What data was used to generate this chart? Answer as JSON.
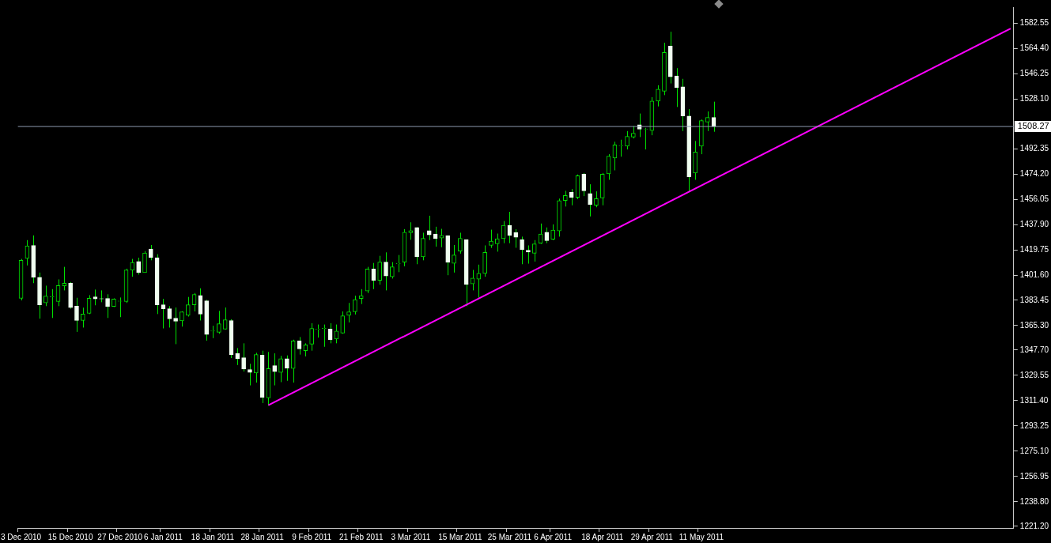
{
  "chart_data": {
    "type": "candlestick",
    "color": "#00e000",
    "colors": [
      "#00e000",
      "#00e000",
      "#f0fff0",
      "#f0fff0",
      "#00e000",
      "#00e000",
      "#00e000",
      "#00e000",
      "#f0fff0",
      "#f0fff0",
      "#00e000",
      "#00e000",
      "#f0fff0",
      "#f0fff0",
      "#f0fff0",
      "#00e000",
      "#00e000",
      "#00e000",
      "#00e000",
      "#f0fff0",
      "#00e000",
      "#f0fff0",
      "#f0fff0",
      "#f0fff0",
      "#f0fff0",
      "#f0fff0",
      "#00e000",
      "#00e000",
      "#00e000",
      "#f0fff0",
      "#f0fff0",
      "#00e000",
      "#00e000",
      "#00e000",
      "#f0fff0",
      "#f0fff0",
      "#f0fff0",
      "#f0fff0",
      "#00e000",
      "#f0fff0",
      "#00e000",
      "#f0fff0",
      "#00e000",
      "#f0fff0",
      "#00e000",
      "#f0fff0",
      "#00e000",
      "#00e000",
      "#00e000",
      "#00e000",
      "#f0fff0",
      "#00e000",
      "#00e000",
      "#00e000",
      "#00e000",
      "#00e000",
      "#00e000",
      "#f0fff0",
      "#00e000",
      "#f0fff0",
      "#00e000",
      "#00e000",
      "#00e000",
      "#00e000",
      "#f0fff0",
      "#00e000",
      "#f0fff0",
      "#f0fff0",
      "#00e000",
      "#f0fff0",
      "#00e000",
      "#00e000",
      "#f0fff0",
      "#00e000",
      "#00e000",
      "#00e000",
      "#00e000",
      "#00e000",
      "#00e000",
      "#f0fff0",
      "#f0fff0",
      "#f0fff0",
      "#f0fff0",
      "#00e000",
      "#00e000",
      "#f0fff0",
      "#00e000",
      "#00e000",
      "#00e000",
      "#f0fff0",
      "#00e000",
      "#f0fff0",
      "#f0fff0",
      "#00e000",
      "#00e000",
      "#00e000",
      "#00e000",
      "#00e000",
      "#00e000",
      "#00e000",
      "#f0fff0",
      "#00e000",
      "#00e000",
      "#00e000",
      "#00e000",
      "#f0fff0",
      "#f0fff0",
      "#f0fff0",
      "#f0fff0",
      "#00e000",
      "#00e000",
      "#00e000",
      "#f0fff0",
      null,
      null,
      null,
      null,
      null,
      null,
      null,
      null,
      null,
      null,
      null,
      null,
      null,
      null,
      null,
      null,
      null,
      null,
      null,
      null,
      null,
      null,
      null,
      null,
      null,
      null,
      null,
      null,
      null,
      null,
      null,
      null,
      null,
      null,
      null,
      null,
      null,
      null,
      null,
      null,
      null,
      null,
      null,
      null,
      null,
      null,
      null,
      null
    ],
    "categories": [
      "3 Dec 2010",
      null,
      null,
      null,
      null,
      null,
      null,
      null,
      "15 Dec 2010",
      null,
      null,
      null,
      null,
      null,
      null,
      null,
      "27 Dec 2010",
      null,
      null,
      null,
      null,
      null,
      null,
      "6 Jan 2011",
      null,
      null,
      null,
      null,
      null,
      null,
      null,
      "18 Jan 2011",
      null,
      null,
      null,
      null,
      null,
      null,
      null,
      "28 Jan 2011",
      null,
      null,
      null,
      null,
      null,
      null,
      null,
      "9 Feb 2011",
      null,
      null,
      null,
      null,
      null,
      null,
      null,
      "21 Feb 2011",
      null,
      null,
      null,
      null,
      null,
      null,
      null,
      "3 Mar 2011",
      null,
      null,
      null,
      null,
      null,
      null,
      null,
      "15 Mar 2011",
      null,
      null,
      null,
      null,
      null,
      null,
      null,
      "25 Mar 2011",
      null,
      null,
      null,
      null,
      null,
      null,
      "6 Apr 2011",
      null,
      null,
      null,
      null,
      null,
      null,
      null,
      "18 Apr 2011",
      null,
      null,
      null,
      null,
      null,
      null,
      null,
      "29 Apr 2011",
      null,
      null,
      null,
      null,
      null,
      null,
      null,
      "11 May 2011",
      null,
      null,
      null,
      null,
      null,
      null,
      null,
      null,
      null,
      null,
      null,
      null,
      null,
      null,
      null,
      null,
      null,
      null,
      null,
      null,
      null,
      null,
      null,
      null,
      null,
      null,
      null,
      null,
      null,
      null,
      null,
      null,
      null,
      null,
      null,
      null,
      null,
      null,
      null,
      null,
      null,
      null,
      null,
      null,
      null,
      null,
      null,
      null,
      null,
      null
    ],
    "ohlc": [
      [
        1384.9,
        1413.2,
        1383.4,
        1412.2
      ],
      [
        1413.6,
        1426.7,
        1408.5,
        1422.6
      ],
      [
        1422.9,
        1430.1,
        1395.8,
        1400.0
      ],
      [
        1400.0,
        1403.4,
        1370.3,
        1380.3
      ],
      [
        1381.7,
        1394.0,
        1379.3,
        1386.5
      ],
      [
        1385.9,
        1391.5,
        1370.8,
        1386.1
      ],
      [
        1382.7,
        1398.5,
        1379.3,
        1394.0
      ],
      [
        1393.8,
        1407.5,
        1390.6,
        1395.7
      ],
      [
        1395.7,
        1396.6,
        1377.4,
        1378.3
      ],
      [
        1379.3,
        1385.3,
        1360.8,
        1369.0
      ],
      [
        1369.0,
        1378.2,
        1363.9,
        1373.6
      ],
      [
        1374.2,
        1387.2,
        1373.6,
        1384.9
      ],
      [
        1385.9,
        1391.2,
        1379.9,
        1384.5
      ],
      [
        1384.7,
        1390.6,
        1382.1,
        1384.5
      ],
      [
        1384.8,
        1387.8,
        1370.8,
        1379.1
      ],
      [
        1379.1,
        1384.9,
        1378.7,
        1384.4
      ],
      [
        1382.8,
        1385.5,
        1371.4,
        1383.0
      ],
      [
        1382.7,
        1406.2,
        1381.6,
        1405.3
      ],
      [
        1405.1,
        1413.2,
        1400.4,
        1410.7
      ],
      [
        1411.3,
        1414.1,
        1401.9,
        1403.4
      ],
      [
        1403.4,
        1418.8,
        1403.4,
        1417.5
      ],
      [
        1420.3,
        1423.2,
        1412.2,
        1414.1
      ],
      [
        1414.1,
        1416.6,
        1373.6,
        1380.3
      ],
      [
        1380.3,
        1384.5,
        1363.3,
        1377.4
      ],
      [
        1377.4,
        1379.3,
        1363.9,
        1370.1
      ],
      [
        1370.7,
        1378.3,
        1352.0,
        1368.4
      ],
      [
        1368.7,
        1375.6,
        1364.6,
        1375.2
      ],
      [
        1372.7,
        1385.9,
        1371.8,
        1380.3
      ],
      [
        1380.3,
        1388.7,
        1375.5,
        1387.6
      ],
      [
        1387.0,
        1392.1,
        1369.0,
        1373.6
      ],
      [
        1383.1,
        1383.8,
        1354.5,
        1359.0
      ],
      [
        1361.3,
        1365.2,
        1356.3,
        1361.5
      ],
      [
        1360.5,
        1375.9,
        1359.5,
        1366.7
      ],
      [
        1362.8,
        1378.3,
        1362.5,
        1369.5
      ],
      [
        1369.0,
        1369.9,
        1342.0,
        1344.5
      ],
      [
        1345.4,
        1349.2,
        1337.0,
        1341.6
      ],
      [
        1342.2,
        1352.6,
        1332.3,
        1334.1
      ],
      [
        1333.7,
        1337.9,
        1322.4,
        1331.7
      ],
      [
        1331.3,
        1345.8,
        1324.4,
        1344.5
      ],
      [
        1344.1,
        1347.3,
        1309.7,
        1313.8
      ],
      [
        1313.4,
        1346.4,
        1307.8,
        1334.5
      ],
      [
        1336.6,
        1345.4,
        1322.4,
        1332.3
      ],
      [
        1331.7,
        1343.6,
        1324.7,
        1341.6
      ],
      [
        1341.6,
        1343.9,
        1325.7,
        1334.7
      ],
      [
        1334.5,
        1355.2,
        1324.4,
        1354.3
      ],
      [
        1354.3,
        1357.1,
        1344.5,
        1348.6
      ],
      [
        1347.3,
        1352.6,
        1343.2,
        1351.5
      ],
      [
        1352.0,
        1367.0,
        1347.3,
        1363.3
      ],
      [
        1362.7,
        1366.1,
        1356.7,
        1362.9
      ],
      [
        1363.2,
        1366.1,
        1350.1,
        1363.4
      ],
      [
        1362.8,
        1367.0,
        1352.6,
        1355.2
      ],
      [
        1355.7,
        1366.1,
        1352.6,
        1361.4
      ],
      [
        1359.9,
        1375.5,
        1359.5,
        1372.3
      ],
      [
        1372.7,
        1381.6,
        1367.6,
        1375.2
      ],
      [
        1375.2,
        1386.8,
        1373.3,
        1384.0
      ],
      [
        1384.7,
        1391.5,
        1380.8,
        1386.8
      ],
      [
        1390.2,
        1407.5,
        1388.7,
        1406.0
      ],
      [
        1406.0,
        1410.3,
        1391.5,
        1397.8
      ],
      [
        1397.8,
        1415.4,
        1394.7,
        1410.9
      ],
      [
        1410.9,
        1417.9,
        1390.6,
        1400.9
      ],
      [
        1400.4,
        1410.9,
        1399.1,
        1407.5
      ],
      [
        1409.7,
        1416.0,
        1403.7,
        1409.9
      ],
      [
        1410.9,
        1434.6,
        1407.9,
        1432.4
      ],
      [
        1432.0,
        1439.5,
        1426.9,
        1433.5
      ],
      [
        1435.8,
        1436.0,
        1409.4,
        1414.7
      ],
      [
        1414.7,
        1432.0,
        1412.2,
        1427.9
      ],
      [
        1433.5,
        1444.2,
        1426.7,
        1430.5
      ],
      [
        1431.1,
        1436.3,
        1422.0,
        1427.7
      ],
      [
        1428.2,
        1434.8,
        1421.6,
        1430.1
      ],
      [
        1429.9,
        1430.1,
        1401.5,
        1410.7
      ],
      [
        1410.0,
        1423.2,
        1403.4,
        1416.0
      ],
      [
        1418.8,
        1432.0,
        1417.0,
        1427.9
      ],
      [
        1426.9,
        1427.2,
        1379.3,
        1394.9
      ],
      [
        1395.3,
        1405.3,
        1390.6,
        1399.4
      ],
      [
        1398.7,
        1409.1,
        1385.3,
        1402.8
      ],
      [
        1402.8,
        1422.9,
        1400.4,
        1417.9
      ],
      [
        1422.9,
        1434.2,
        1421.1,
        1426.0
      ],
      [
        1424.1,
        1431.4,
        1418.4,
        1427.7
      ],
      [
        1427.7,
        1440.4,
        1424.5,
        1437.3
      ],
      [
        1437.3,
        1447.0,
        1424.5,
        1430.1
      ],
      [
        1432.0,
        1434.5,
        1421.2,
        1428.8
      ],
      [
        1426.9,
        1429.2,
        1409.4,
        1419.8
      ],
      [
        1419.4,
        1422.9,
        1409.8,
        1418.1
      ],
      [
        1417.3,
        1426.7,
        1411.3,
        1424.0
      ],
      [
        1424.5,
        1438.6,
        1424.0,
        1431.1
      ],
      [
        1432.4,
        1435.8,
        1424.5,
        1426.3
      ],
      [
        1427.3,
        1438.0,
        1426.7,
        1433.9
      ],
      [
        1433.3,
        1456.5,
        1429.2,
        1455.0
      ],
      [
        1455.1,
        1462.1,
        1450.8,
        1458.7
      ],
      [
        1461.2,
        1463.4,
        1451.7,
        1457.4
      ],
      [
        1457.4,
        1473.8,
        1456.1,
        1473.0
      ],
      [
        1474.0,
        1474.9,
        1458.3,
        1462.1
      ],
      [
        1460.2,
        1466.8,
        1443.7,
        1452.3
      ],
      [
        1451.7,
        1461.7,
        1450.3,
        1456.5
      ],
      [
        1457.0,
        1474.9,
        1451.7,
        1474.0
      ],
      [
        1474.3,
        1488.4,
        1470.0,
        1487.0
      ],
      [
        1485.6,
        1497.3,
        1476.8,
        1495.0
      ],
      [
        1494.5,
        1498.8,
        1486.6,
        1494.7
      ],
      [
        1494.1,
        1505.0,
        1491.8,
        1501.2
      ],
      [
        1500.7,
        1508.6,
        1499.7,
        1503.5
      ],
      [
        1509.5,
        1517.6,
        1500.7,
        1506.3
      ],
      [
        1506.4,
        1507.3,
        1491.8,
        1506.6
      ],
      [
        1505.4,
        1529.3,
        1502.0,
        1526.5
      ],
      [
        1526.5,
        1537.9,
        1522.7,
        1535.1
      ],
      [
        1533.6,
        1568.4,
        1530.8,
        1561.5
      ],
      [
        1566.0,
        1576.3,
        1539.2,
        1544.0
      ],
      [
        1544.6,
        1550.2,
        1522.3,
        1536.1
      ],
      [
        1536.8,
        1542.5,
        1505.0,
        1515.8
      ],
      [
        1515.8,
        1520.8,
        1461.2,
        1472.1
      ],
      [
        1474.9,
        1497.9,
        1470.0,
        1490.0
      ],
      [
        1494.1,
        1513.3,
        1488.4,
        1512.5
      ],
      [
        1511.4,
        1519.1,
        1505.0,
        1514.8
      ],
      [
        1514.8,
        1526.1,
        1504.5,
        1508.27
      ],
      null,
      null,
      null,
      null,
      null,
      null,
      null,
      null,
      null,
      null,
      null,
      null,
      null,
      null,
      null,
      null,
      null,
      null,
      null,
      null,
      null,
      null,
      null,
      null,
      null,
      null,
      null,
      null,
      null,
      null,
      null,
      null,
      null,
      null,
      null,
      null,
      null,
      null,
      null,
      null,
      null,
      null,
      null,
      null,
      null,
      null,
      null,
      null
    ],
    "series": [
      {
        "type": "line",
        "color": "#ff00ff",
        "values": [
          null,
          null,
          null,
          null,
          null,
          null,
          null,
          null,
          null,
          null,
          null,
          null,
          null,
          null,
          null,
          null,
          null,
          null,
          null,
          null,
          null,
          null,
          null,
          null,
          null,
          null,
          null,
          null,
          null,
          null,
          null,
          null,
          null,
          null,
          null,
          null,
          null,
          null,
          null,
          null,
          1308.2,
          null,
          null,
          null,
          null,
          null,
          null,
          null,
          null,
          null,
          null,
          null,
          null,
          null,
          null,
          null,
          null,
          null,
          null,
          null,
          null,
          null,
          null,
          null,
          null,
          null,
          null,
          null,
          null,
          null,
          null,
          null,
          null,
          null,
          null,
          null,
          null,
          null,
          null,
          null,
          null,
          null,
          null,
          null,
          null,
          null,
          null,
          null,
          null,
          null,
          null,
          null,
          null,
          null,
          null,
          null,
          null,
          null,
          null,
          null,
          null,
          null,
          null,
          null,
          null,
          null,
          null,
          null,
          null,
          null,
          null,
          null,
          null,
          null,
          null,
          null,
          null,
          null,
          null,
          null,
          null,
          null,
          null,
          null,
          null,
          null,
          null,
          null,
          null,
          null,
          null,
          null,
          null,
          null,
          null,
          null,
          null,
          null,
          null,
          null,
          null,
          null,
          null,
          null,
          null,
          null,
          null,
          null,
          null,
          null,
          null,
          null,
          null,
          null,
          null,
          null,
          null,
          null,
          null,
          null,
          1578.6
        ]
      }
    ],
    "ylim": [
      1220,
      1594
    ],
    "yticks": [
      1582.55,
      {
        "value": 1564.4,
        "label": "1564.40"
      },
      1546.25,
      {
        "value": 1528.1,
        "label": "1528.10"
      },
      1492.35,
      {
        "value": 1474.2,
        "label": "1474.20"
      },
      1456.05,
      {
        "value": 1437.9,
        "label": "1437.90"
      },
      1419.75,
      {
        "value": 1401.6,
        "label": "1401.60"
      },
      1383.45,
      {
        "value": 1365.3,
        "label": "1365.30"
      },
      {
        "value": 1347.7,
        "label": "1347.70"
      },
      1329.55,
      {
        "value": 1311.4,
        "label": "1311.40"
      },
      1293.25,
      {
        "value": 1275.1,
        "label": "1275.10"
      },
      1256.95,
      {
        "value": 1238.8,
        "label": "1238.80"
      },
      {
        "value": 1221.2,
        "label": "1221.20"
      }
    ],
    "ref_lines": [
      {
        "axis": "y",
        "value": 1508.27,
        "label": "1508.27",
        "color": "#8c9ab0"
      }
    ]
  }
}
